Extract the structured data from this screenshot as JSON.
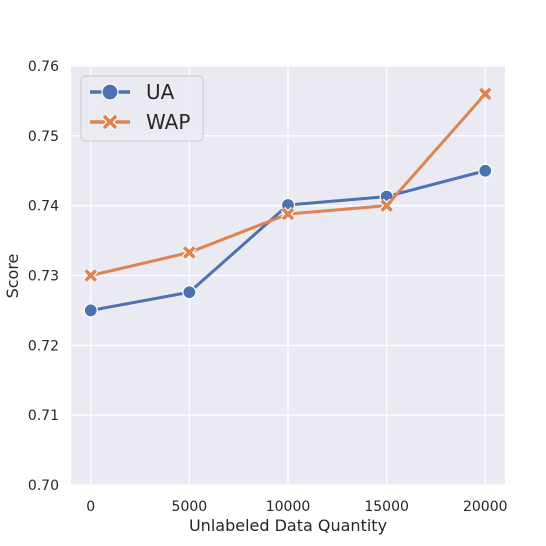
{
  "chart_data": {
    "type": "line",
    "title": "",
    "xlabel": "Unlabeled Data Quantity",
    "ylabel": "Score",
    "x": [
      0,
      5000,
      10000,
      15000,
      20000
    ],
    "x_ticks": [
      "0",
      "5000",
      "10000",
      "15000",
      "20000"
    ],
    "y_ticks": [
      "0.70",
      "0.71",
      "0.72",
      "0.73",
      "0.74",
      "0.75",
      "0.76"
    ],
    "xlim": [
      -1000,
      21000
    ],
    "ylim": [
      0.7,
      0.76
    ],
    "grid": true,
    "legend_position": "top-left",
    "background": "#EAEAF2",
    "series": [
      {
        "name": "UA",
        "marker": "circle",
        "color": "#4C72B0",
        "values": [
          0.725,
          0.7276,
          0.7401,
          0.7413,
          0.745
        ]
      },
      {
        "name": "WAP",
        "marker": "x",
        "color": "#DD8452",
        "values": [
          0.73,
          0.7333,
          0.7388,
          0.74,
          0.756
        ]
      }
    ]
  }
}
